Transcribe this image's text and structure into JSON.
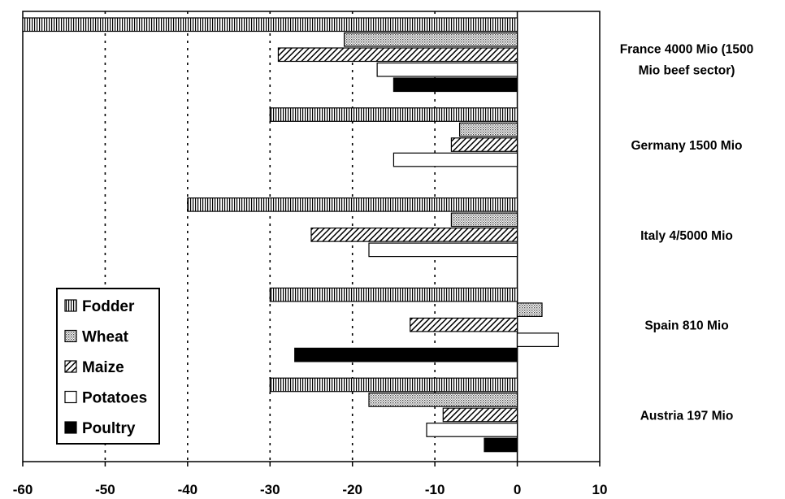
{
  "chart_data": {
    "type": "bar",
    "orientation": "horizontal",
    "title": "",
    "xlabel": "",
    "ylabel": "",
    "xlim": [
      -60,
      10
    ],
    "xticks": [
      -60,
      -50,
      -40,
      -30,
      -20,
      -10,
      0,
      10
    ],
    "grid": "dotted vertical",
    "legend_position": "bottom-left",
    "categories": [
      [
        "France 4000 Mio (1500",
        "Mio beef sector)"
      ],
      [
        "Germany 1500 Mio"
      ],
      [
        "Italy 4/5000 Mio"
      ],
      [
        "Spain 810 Mio"
      ],
      [
        "Austria 197 Mio"
      ]
    ],
    "series": [
      {
        "name": "Fodder",
        "pattern": "vertical-stripes",
        "values": [
          -60,
          -30,
          -40,
          -30,
          -30
        ]
      },
      {
        "name": "Wheat",
        "pattern": "dots",
        "values": [
          -21,
          -7,
          -8,
          3,
          -18
        ]
      },
      {
        "name": "Maize",
        "pattern": "diagonal-hatch",
        "values": [
          -29,
          -8,
          -25,
          -13,
          -9
        ]
      },
      {
        "name": "Potatoes",
        "pattern": "white",
        "values": [
          -17,
          -15,
          -18,
          5,
          -11
        ]
      },
      {
        "name": "Poultry",
        "pattern": "black",
        "values": [
          -15,
          null,
          null,
          -27,
          -4
        ]
      }
    ]
  }
}
